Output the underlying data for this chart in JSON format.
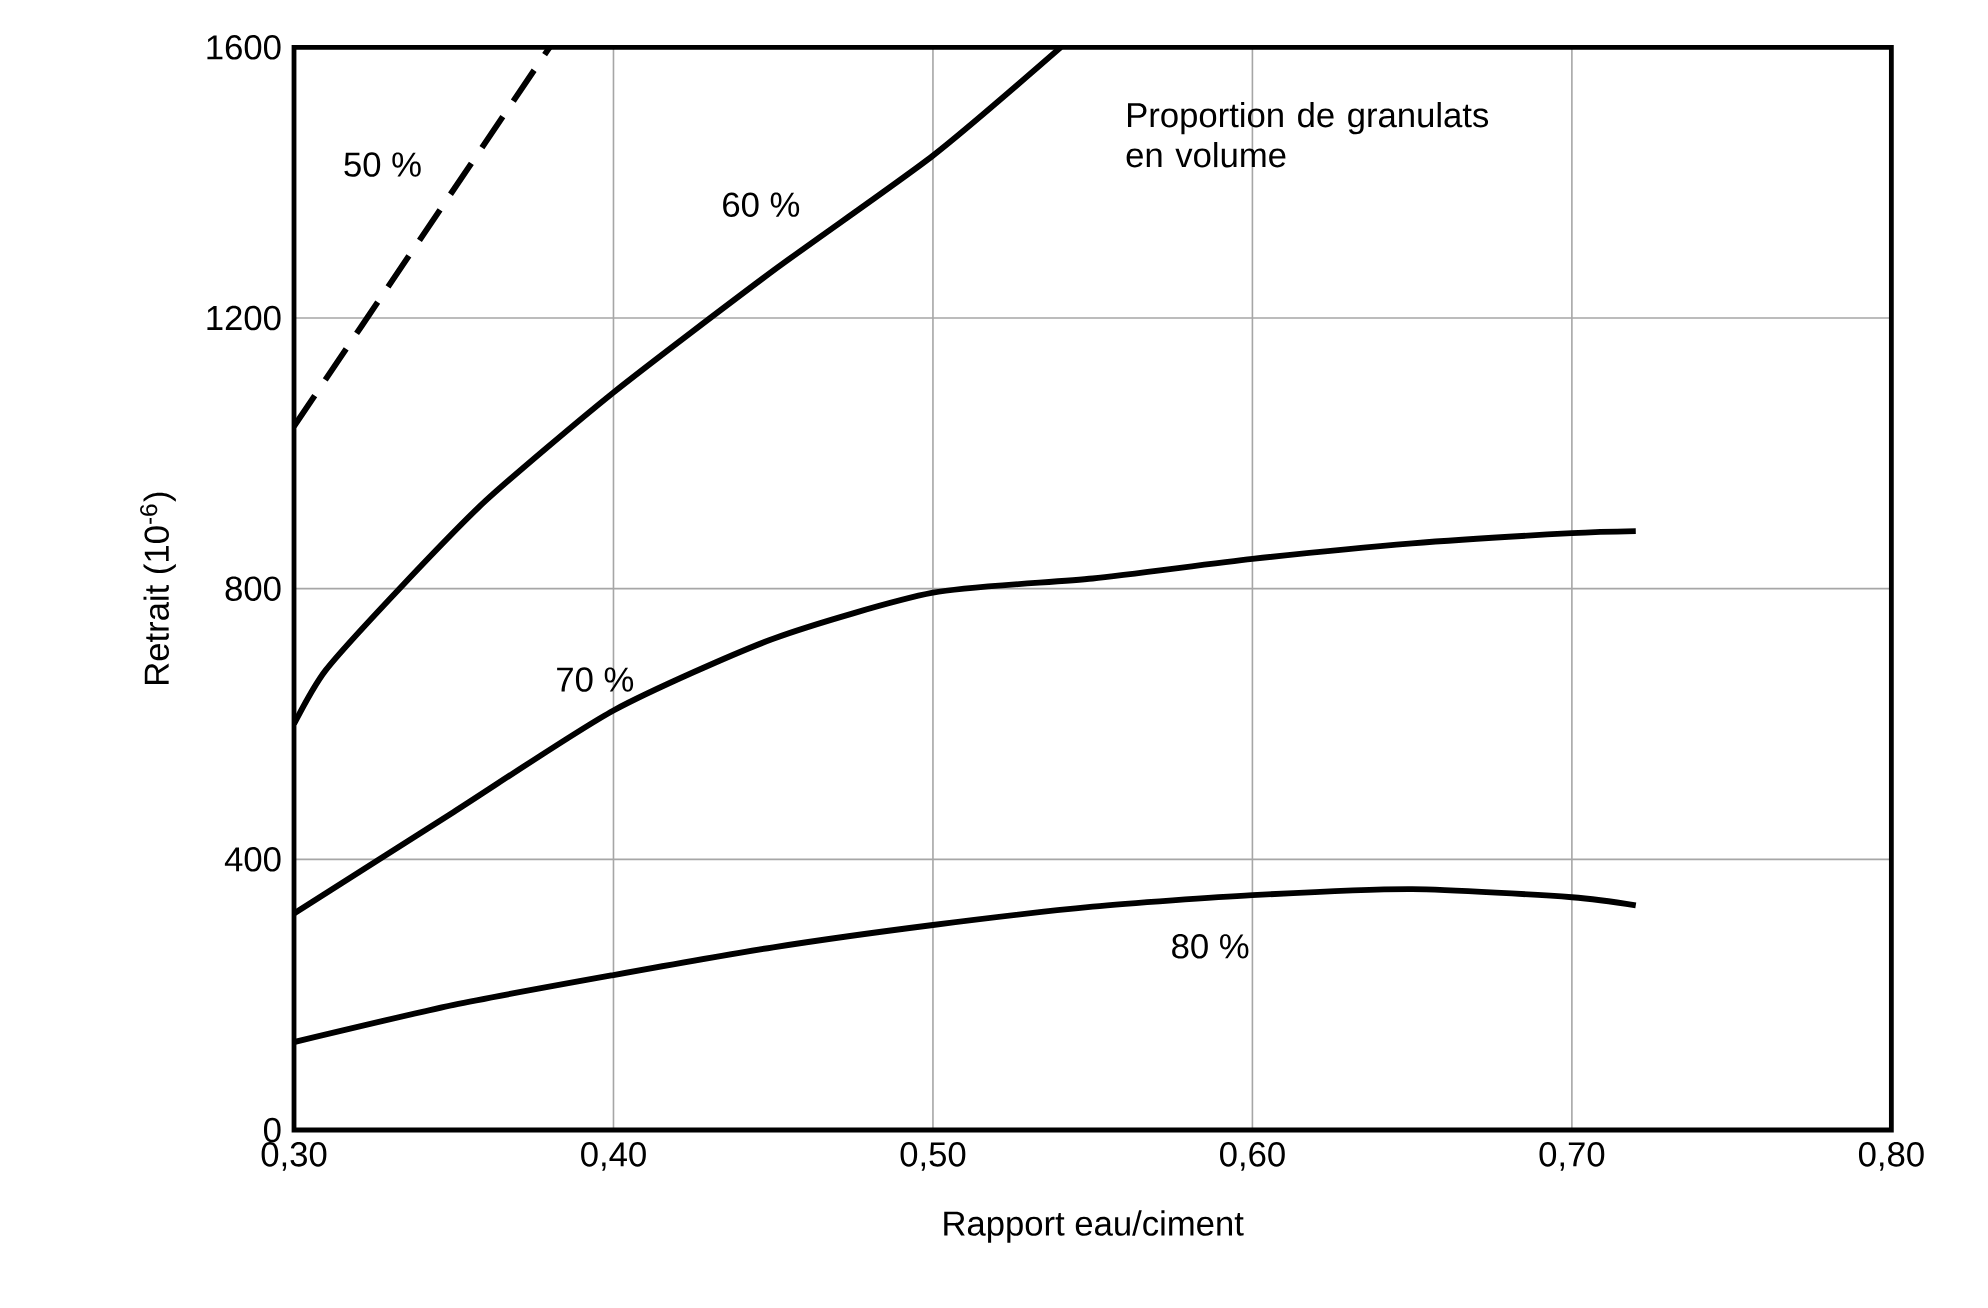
{
  "chart_data": {
    "type": "line",
    "xlabel": "Rapport eau/ciment",
    "ylabel": "Retrait (10$^{-6}$)",
    "xlim": [
      0.3,
      0.8
    ],
    "ylim": [
      0,
      1600
    ],
    "xticks": [
      {
        "value": 0.3,
        "label": "0,30"
      },
      {
        "value": 0.4,
        "label": "0,40"
      },
      {
        "value": 0.5,
        "label": "0,50"
      },
      {
        "value": 0.6,
        "label": "0,60"
      },
      {
        "value": 0.7,
        "label": "0,70"
      },
      {
        "value": 0.8,
        "label": "0,80"
      }
    ],
    "yticks": [
      0,
      400,
      800,
      1200,
      1600
    ],
    "grid": true,
    "marker": "none",
    "line_style": "solid",
    "annotations": [
      "Proportion de granulats en volume"
    ],
    "series": [
      {
        "name": "50 %",
        "color": "#000000",
        "line_style": "dashed",
        "x": [
          0.3,
          0.34,
          0.38
        ],
        "values": [
          1040,
          1320,
          1600
        ]
      },
      {
        "name": "60 %",
        "color": "#000000",
        "x": [
          0.3,
          0.31,
          0.333,
          0.36,
          0.4,
          0.45,
          0.5,
          0.54
        ],
        "values": [
          600,
          680,
          800,
          930,
          1090,
          1270,
          1440,
          1600
        ]
      },
      {
        "name": "70 %",
        "color": "#000000",
        "x": [
          0.3,
          0.35,
          0.4,
          0.45,
          0.5,
          0.55,
          0.6,
          0.65,
          0.7,
          0.72
        ],
        "values": [
          320,
          470,
          620,
          726,
          794,
          815,
          844,
          867,
          882,
          885
        ]
      },
      {
        "name": "80 %",
        "color": "#000000",
        "x": [
          0.3,
          0.35,
          0.4,
          0.45,
          0.5,
          0.55,
          0.6,
          0.65,
          0.7,
          0.72
        ],
        "values": [
          130,
          185,
          229,
          270,
          303,
          330,
          347,
          356,
          344,
          332
        ]
      }
    ]
  }
}
